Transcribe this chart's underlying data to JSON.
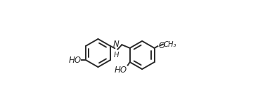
{
  "background_color": "#ffffff",
  "line_color": "#2a2a2a",
  "line_width": 1.4,
  "text_color": "#2a2a2a",
  "font_size": 8.5,
  "r1cx": 0.205,
  "r1cy": 0.5,
  "r1r": 0.135,
  "r2cx": 0.625,
  "r2cy": 0.48,
  "r2r": 0.135,
  "nh_label": "N\nH",
  "ho1_label": "HO",
  "ho2_label": "HO",
  "o_label": "O",
  "me_label": "CH₃"
}
